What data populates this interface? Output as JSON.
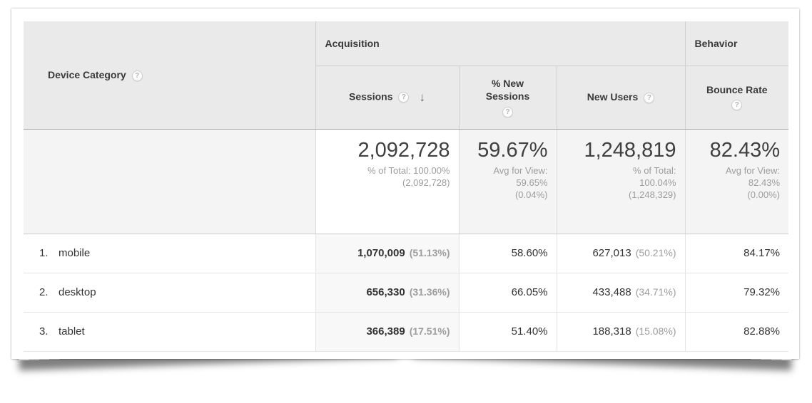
{
  "table": {
    "help_icon": "?",
    "dimension": {
      "label": "Device Category"
    },
    "group_headers": {
      "acquisition": "Acquisition",
      "behavior": "Behavior"
    },
    "columns": {
      "sessions": "Sessions",
      "new_sessions": "% New Sessions",
      "new_users": "New Users",
      "bounce_rate": "Bounce Rate"
    },
    "sort": {
      "column": "Sessions",
      "direction": "descending",
      "arrow": "↓"
    },
    "summary": {
      "sessions_value": "2,092,728",
      "sessions_subtext": "% of Total: 100.00%\n(2,092,728)",
      "new_sessions_value": "59.67%",
      "new_sessions_subtext": "Avg for View:\n59.65%\n(0.04%)",
      "new_users_value": "1,248,819",
      "new_users_subtext": "% of Total:\n100.04%\n(1,248,329)",
      "bounce_rate_value": "82.43%",
      "bounce_rate_subtext": "Avg for View:\n82.43%\n(0.00%)"
    },
    "rows": [
      {
        "rank": "1.",
        "device": "mobile",
        "sessions": "1,070,009",
        "sessions_share": "(51.13%)",
        "pct_new_sessions": "58.60%",
        "new_users": "627,013",
        "new_users_share": "(50.21%)",
        "bounce_rate": "84.17%"
      },
      {
        "rank": "2.",
        "device": "desktop",
        "sessions": "656,330",
        "sessions_share": "(31.36%)",
        "pct_new_sessions": "66.05%",
        "new_users": "433,488",
        "new_users_share": "(34.71%)",
        "bounce_rate": "79.32%"
      },
      {
        "rank": "3.",
        "device": "tablet",
        "sessions": "366,389",
        "sessions_share": "(17.51%)",
        "pct_new_sessions": "51.40%",
        "new_users": "188,318",
        "new_users_share": "(15.08%)",
        "bounce_rate": "82.88%"
      }
    ]
  },
  "colors": {
    "header_bg": "#eaeaea",
    "summary_bg": "#f4f4f4",
    "sorted_column_bg": "#f8f8f8",
    "text_primary": "#333333",
    "text_secondary": "#9d9d9d"
  }
}
